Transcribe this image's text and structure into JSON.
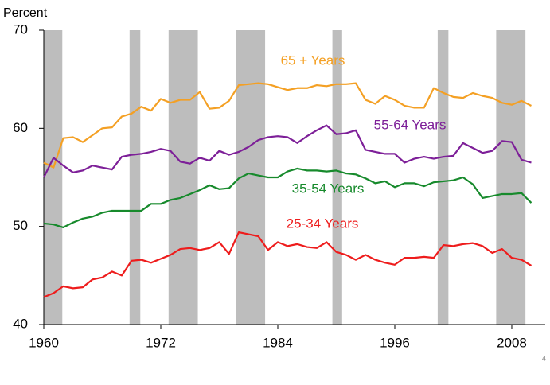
{
  "chart_data": {
    "type": "line",
    "y_axis_label": "Percent",
    "footnote": "4",
    "x": [
      1960,
      1961,
      1962,
      1963,
      1964,
      1965,
      1966,
      1967,
      1968,
      1969,
      1970,
      1971,
      1972,
      1973,
      1974,
      1975,
      1976,
      1977,
      1978,
      1979,
      1980,
      1981,
      1982,
      1983,
      1984,
      1985,
      1986,
      1987,
      1988,
      1989,
      1990,
      1991,
      1992,
      1993,
      1994,
      1995,
      1996,
      1997,
      1998,
      1999,
      2000,
      2001,
      2002,
      2003,
      2004,
      2005,
      2006,
      2007,
      2008,
      2009,
      2010
    ],
    "xlim": [
      1960,
      2011.43
    ],
    "xticks": [
      1960,
      1972,
      1984,
      1996,
      2008
    ],
    "ylim": [
      40,
      70
    ],
    "yticks": [
      40,
      50,
      60,
      70
    ],
    "shaded_periods": [
      [
        1960.0,
        1961.9
      ],
      [
        1968.8,
        1969.9
      ],
      [
        1972.8,
        1975.8
      ],
      [
        1979.7,
        1982.7
      ],
      [
        1989.6,
        1990.6
      ],
      [
        2000.4,
        2001.5
      ],
      [
        2006.4,
        2009.4
      ]
    ],
    "shade_color": "#bdbdbd",
    "series": [
      {
        "name": "65 + Years",
        "color": "#f4a024",
        "values": [
          56.5,
          56,
          59,
          59.1,
          58.6,
          59.3,
          60,
          60.1,
          61.2,
          61.5,
          62.2,
          61.8,
          63,
          62.6,
          62.9,
          62.9,
          63.7,
          62,
          62.1,
          62.8,
          64.4,
          64.5,
          64.6,
          64.5,
          64.2,
          63.9,
          64.1,
          64.1,
          64.4,
          64.3,
          64.5,
          64.5,
          64.6,
          62.9,
          62.5,
          63.3,
          62.9,
          62.3,
          62.1,
          62.1,
          64.1,
          63.6,
          63.2,
          63.1,
          63.6,
          63.3,
          63.1,
          62.6,
          62.4,
          62.8,
          62.3
        ]
      },
      {
        "name": "55-64 Years",
        "color": "#7d1f98",
        "values": [
          55,
          57,
          56.2,
          55.5,
          55.7,
          56.2,
          56,
          55.8,
          57.1,
          57.3,
          57.4,
          57.6,
          57.9,
          57.7,
          56.6,
          56.4,
          57,
          56.7,
          57.7,
          57.3,
          57.6,
          58.1,
          58.8,
          59.1,
          59.2,
          59.1,
          58.5,
          59.2,
          59.8,
          60.3,
          59.4,
          59.5,
          59.8,
          57.8,
          57.6,
          57.4,
          57.4,
          56.5,
          56.9,
          57.1,
          56.9,
          57.1,
          57.2,
          58.5,
          58,
          57.5,
          57.7,
          58.7,
          58.6,
          56.8,
          56.5
        ]
      },
      {
        "name": "35-54 Years",
        "color": "#178a2c",
        "values": [
          50.3,
          50.2,
          49.9,
          50.4,
          50.8,
          51,
          51.4,
          51.6,
          51.6,
          51.6,
          51.6,
          52.3,
          52.3,
          52.7,
          52.9,
          53.3,
          53.7,
          54.2,
          53.8,
          53.9,
          54.9,
          55.4,
          55.2,
          55,
          55,
          55.6,
          55.9,
          55.7,
          55.7,
          55.6,
          55.7,
          55.4,
          55.3,
          54.9,
          54.4,
          54.6,
          54,
          54.4,
          54.4,
          54.1,
          54.5,
          54.6,
          54.7,
          55,
          54.3,
          52.9,
          53.1,
          53.3,
          53.3,
          53.4,
          52.4
        ]
      },
      {
        "name": "25-34 Years",
        "color": "#ee1c1c",
        "values": [
          42.8,
          43.2,
          43.9,
          43.7,
          43.8,
          44.6,
          44.8,
          45.4,
          45,
          46.5,
          46.6,
          46.3,
          46.7,
          47.1,
          47.7,
          47.8,
          47.6,
          47.8,
          48.4,
          47.2,
          49.4,
          49.2,
          49,
          47.6,
          48.4,
          48,
          48.2,
          47.9,
          47.8,
          48.4,
          47.4,
          47.1,
          46.6,
          47.1,
          46.6,
          46.3,
          46.1,
          46.8,
          46.8,
          46.9,
          46.8,
          48.1,
          48,
          48.2,
          48.3,
          48,
          47.3,
          47.7,
          46.8,
          46.6,
          46
        ]
      }
    ]
  }
}
